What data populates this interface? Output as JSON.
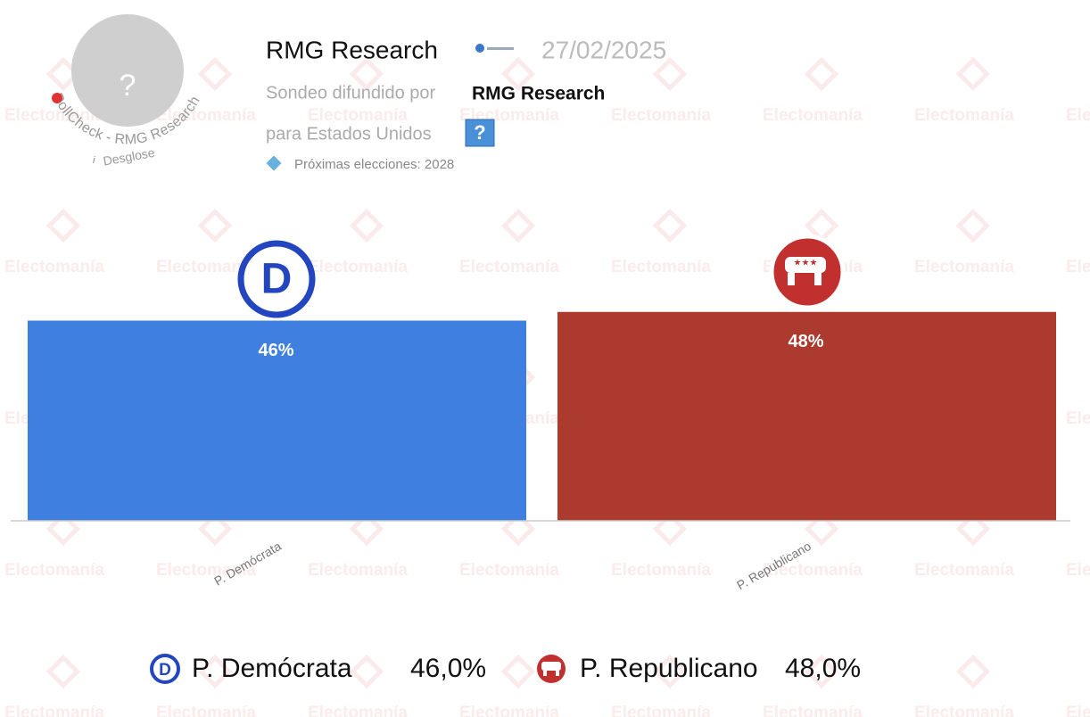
{
  "header": {
    "pollster": "RMG Research",
    "date": "27/02/2025",
    "spread_by": "Sondeo difundido por",
    "sponsor": "RMG Research",
    "region": "para Estados Unidos",
    "next_election": "Próximas elecciones: 2028",
    "badge_mark": "?",
    "badge_arc": "PollCheck - RMG Research",
    "badge_link": "Desglose"
  },
  "watermark": "Electomanía",
  "chart_data": {
    "type": "bar",
    "categories": [
      "P. Demócrata",
      "P. Republicano"
    ],
    "values": [
      46,
      48
    ],
    "value_labels": [
      "46%",
      "48%"
    ],
    "legend_labels": [
      "46,0%",
      "48,0%"
    ],
    "colors": [
      "#3f7fe0",
      "#ad3a2e"
    ],
    "ylim": [
      0,
      50
    ]
  }
}
